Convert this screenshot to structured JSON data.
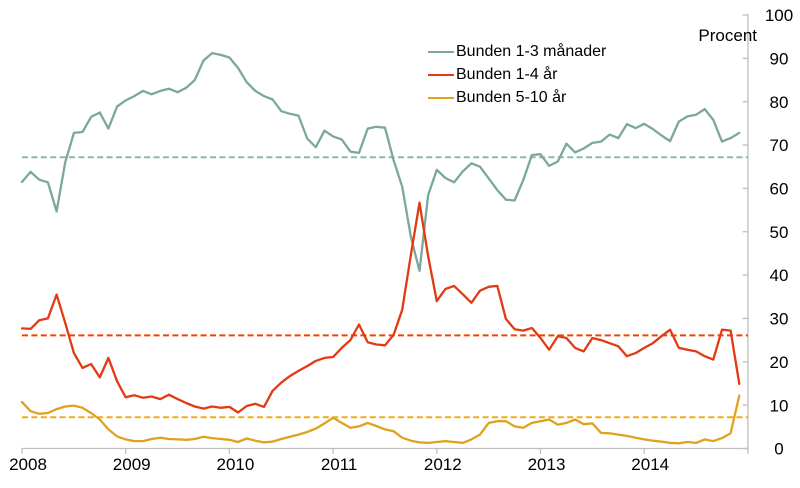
{
  "chart_data": {
    "type": "line",
    "title": "",
    "ylabel": "Procent",
    "frequency": "monthly",
    "x_range": [
      "2008-01",
      "2014-12"
    ],
    "x_tick_labels": [
      "2008",
      "2009",
      "2010",
      "2011",
      "2012",
      "2013",
      "2014"
    ],
    "y_ticks": [
      0,
      10,
      20,
      30,
      40,
      50,
      60,
      70,
      80,
      90,
      100
    ],
    "ylim": [
      0,
      100
    ],
    "grid": false,
    "legend_position": "top-center",
    "axis_color": "#bfbfbf",
    "text_color": "#000000",
    "series": [
      {
        "name": "Bunden 1-3 månader",
        "slug": "bunden-1-3-manader",
        "color": "#7ca79e",
        "dash_color": "#8cb8ac",
        "mean_dashed_line": 67.2,
        "values": [
          61.5,
          63.8,
          62,
          61.4,
          54.7,
          66,
          72.8,
          73,
          76.5,
          77.5,
          73.8,
          78.9,
          80.3,
          81.3,
          82.5,
          81.7,
          82.5,
          83,
          82.2,
          83.2,
          85,
          89.5,
          91.2,
          90.8,
          90.2,
          87.8,
          84.5,
          82.5,
          81.3,
          80.5,
          77.8,
          77.2,
          76.8,
          71.5,
          69.5,
          73.3,
          72,
          71.3,
          68.5,
          68.2,
          73.8,
          74.2,
          74,
          66.5,
          60.4,
          48.8,
          41,
          58.5,
          64.3,
          62.4,
          61.4,
          63.9,
          65.8,
          65,
          62.3,
          59.6,
          57.4,
          57.2,
          61.9,
          67.7,
          67.9,
          65.2,
          66.2,
          70.3,
          68.3,
          69.2,
          70.5,
          70.8,
          72.4,
          71.6,
          74.8,
          73.9,
          74.9,
          73.7,
          72.2,
          70.9,
          75.4,
          76.6,
          77,
          78.3,
          75.8,
          70.8,
          71.6,
          72.8
        ]
      },
      {
        "name": "Bunden 1-4 år",
        "slug": "bunden-1-4-ar",
        "color": "#e23a12",
        "dash_color": "#f54100",
        "mean_dashed_line": 26.1,
        "values": [
          27.7,
          27.6,
          29.6,
          30,
          35.5,
          29,
          22,
          18.6,
          19.5,
          16.4,
          20.9,
          15.5,
          11.8,
          12.3,
          11.7,
          12,
          11.4,
          12.4,
          11.4,
          10.5,
          9.7,
          9.2,
          9.7,
          9.4,
          9.6,
          8.3,
          9.8,
          10.3,
          9.6,
          13.3,
          15.2,
          16.7,
          17.9,
          19,
          20.2,
          20.9,
          21.1,
          23.2,
          25,
          28.6,
          24.5,
          24,
          23.8,
          26.2,
          32,
          44.7,
          56.7,
          44.3,
          34,
          36.8,
          37.5,
          35.6,
          33.6,
          36.4,
          37.3,
          37.5,
          29.9,
          27.5,
          27.2,
          27.8,
          25.5,
          22.8,
          25.9,
          25.5,
          23.2,
          22.4,
          25.5,
          25,
          24.3,
          23.6,
          21.3,
          22,
          23.2,
          24.3,
          25.9,
          27.4,
          23.2,
          22.8,
          22.4,
          21.3,
          20.5,
          27.4,
          27.2,
          14.9
        ]
      },
      {
        "name": "Bunden 5-10 år",
        "slug": "bunden-5-10-ar",
        "color": "#dfa11e",
        "dash_color": "#f0ac1c",
        "mean_dashed_line": 7.2,
        "values": [
          10.7,
          8.6,
          8,
          8.2,
          9.1,
          9.7,
          9.9,
          9.4,
          8.2,
          6.7,
          4.4,
          2.8,
          2.1,
          1.7,
          1.7,
          2.2,
          2.5,
          2.2,
          2.1,
          2,
          2.2,
          2.7,
          2.4,
          2.2,
          2,
          1.5,
          2.3,
          1.8,
          1.4,
          1.6,
          2.2,
          2.7,
          3.2,
          3.8,
          4.6,
          5.8,
          7.1,
          5.9,
          4.8,
          5.1,
          5.9,
          5.2,
          4.4,
          4,
          2.5,
          1.8,
          1.4,
          1.3,
          1.5,
          1.7,
          1.5,
          1.3,
          2.1,
          3.2,
          5.9,
          6.3,
          6.3,
          5.1,
          4.8,
          5.9,
          6.3,
          6.7,
          5.5,
          5.9,
          6.7,
          5.6,
          5.8,
          3.6,
          3.5,
          3.2,
          2.9,
          2.5,
          2.1,
          1.8,
          1.6,
          1.3,
          1.2,
          1.5,
          1.3,
          2.1,
          1.7,
          2.4,
          3.5,
          12.2
        ]
      }
    ]
  }
}
